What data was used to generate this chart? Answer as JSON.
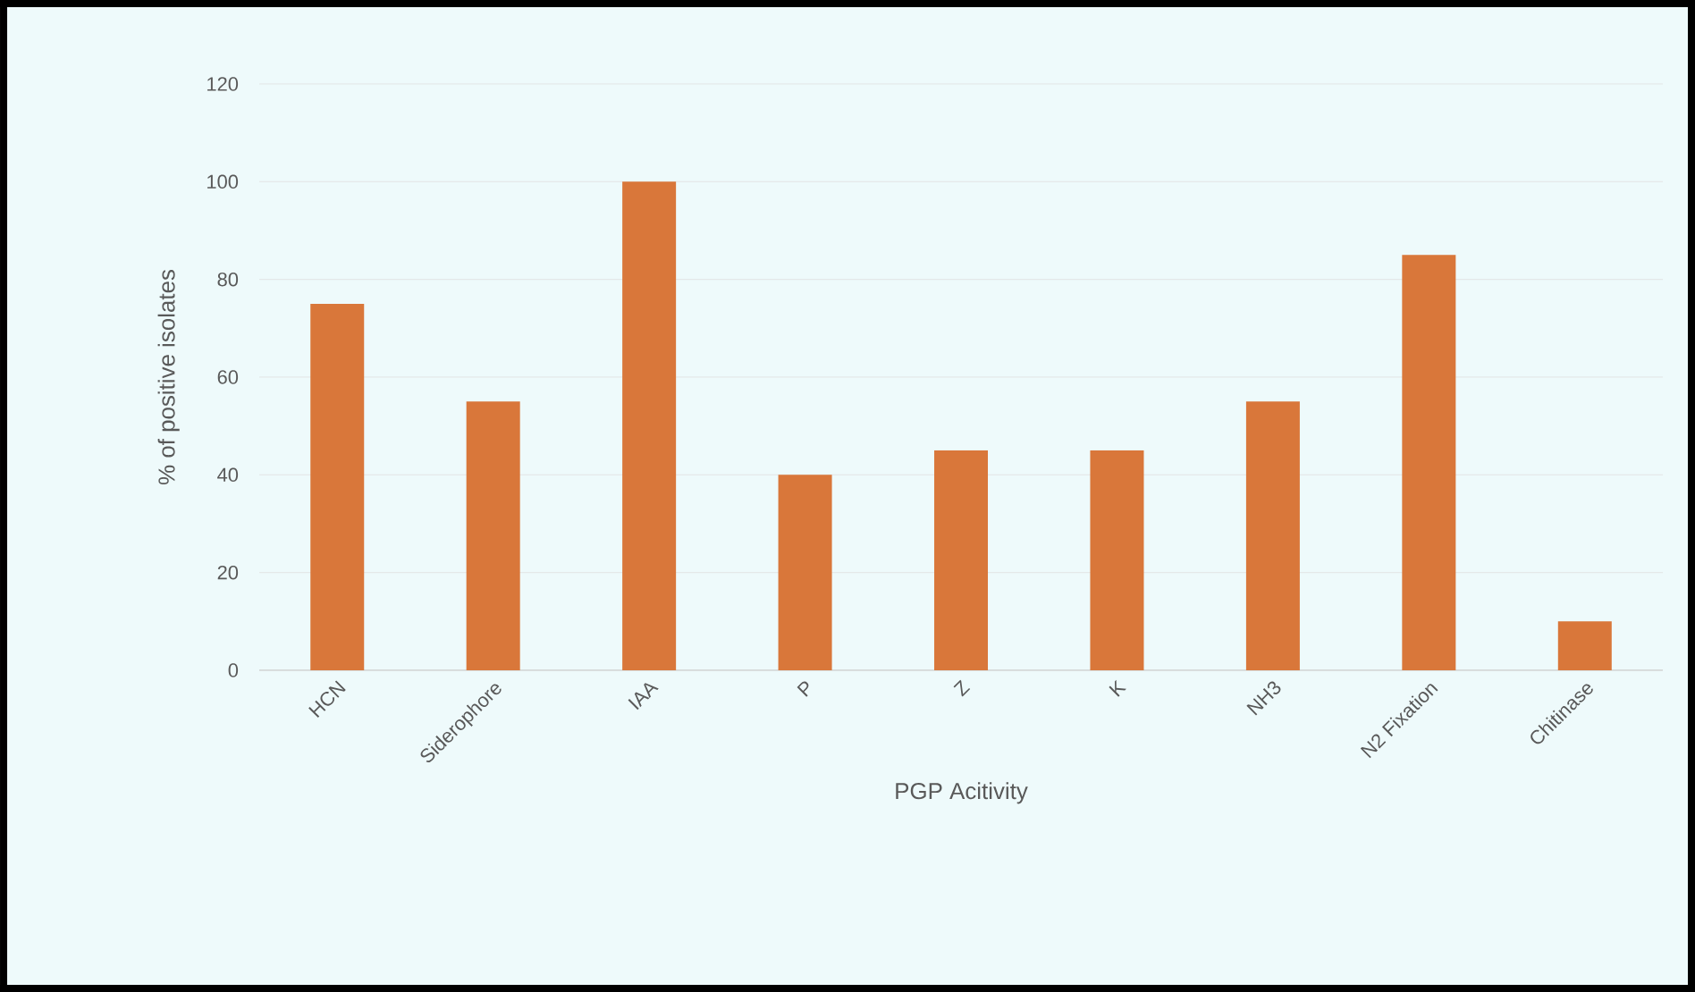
{
  "chart_data": {
    "type": "bar",
    "xlabel": "PGP Acitivity",
    "ylabel": "% of positive isolates",
    "categories": [
      "HCN",
      "Siderophore",
      "IAA",
      "P",
      "Z",
      "K",
      "NH3",
      "N2 Fixation",
      "Chitinase"
    ],
    "values": [
      75,
      55,
      100,
      40,
      45,
      45,
      55,
      85,
      10
    ],
    "color": "#d9773a",
    "ylim": [
      0,
      120
    ],
    "yticks": [
      0,
      20,
      40,
      60,
      80,
      100,
      120
    ],
    "grid": "y"
  }
}
